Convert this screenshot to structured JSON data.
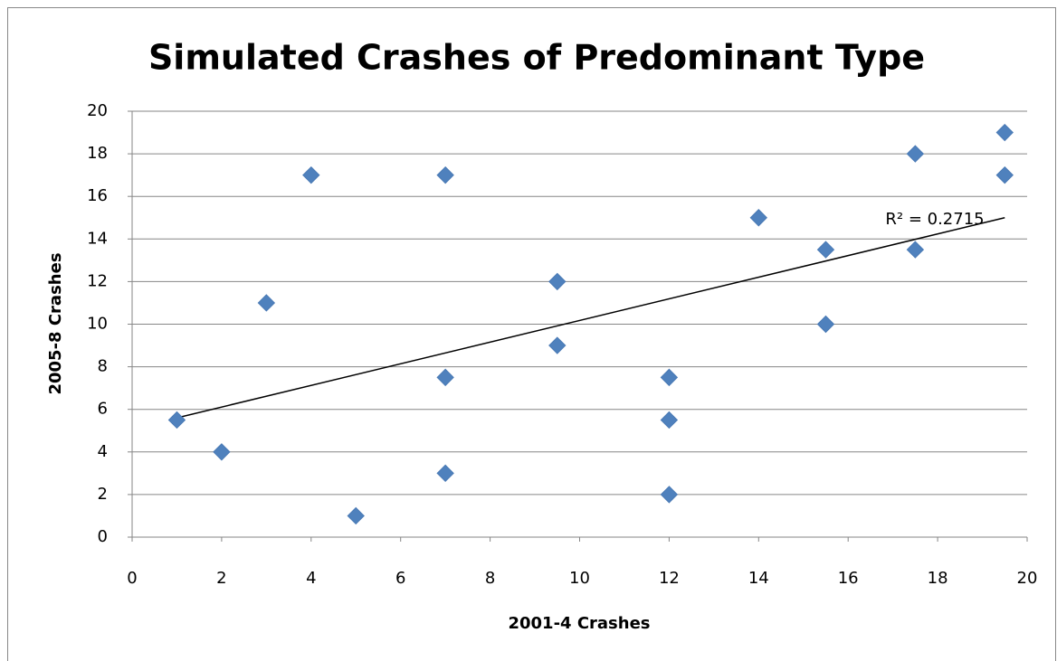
{
  "chart_data": {
    "type": "scatter",
    "title": "Simulated Crashes of Predominant Type",
    "xlabel": "2001-4 Crashes",
    "ylabel": "2005-8 Crashes",
    "x": [
      1,
      2,
      3,
      4,
      5,
      7,
      7,
      7,
      9.5,
      9.5,
      12,
      12,
      12,
      14,
      15.5,
      15.5,
      17.5,
      17.5,
      19.5,
      19.5
    ],
    "values": [
      5.5,
      4,
      11,
      17,
      1,
      17,
      7.5,
      3,
      12,
      9,
      7.5,
      5.5,
      2,
      15,
      13.5,
      10,
      18,
      13.5,
      19,
      17
    ],
    "color": "#4f81bd",
    "trendline": {
      "x": [
        1,
        19.5
      ],
      "y": [
        5.6,
        15.0
      ],
      "label": "R² = 0.2715"
    },
    "xlim": [
      0,
      20
    ],
    "xticks": [
      0,
      2,
      4,
      6,
      8,
      10,
      12,
      14,
      16,
      18,
      20
    ],
    "ylim": [
      0,
      20
    ],
    "yticks": [
      0,
      2,
      4,
      6,
      8,
      10,
      12,
      14,
      16,
      18,
      20
    ],
    "grid": true
  }
}
